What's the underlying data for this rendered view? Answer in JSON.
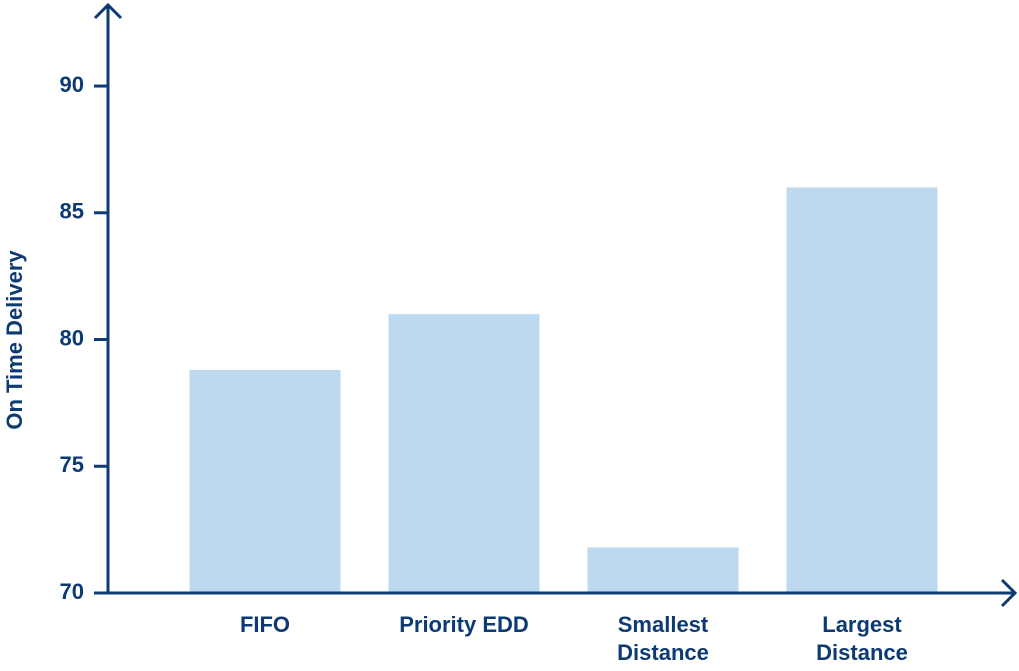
{
  "chart_data": {
    "type": "bar",
    "y_label": "On Time Delivery",
    "categories": [
      "FIFO",
      "Priority EDD",
      "Smallest Distance",
      "Largest Distance"
    ],
    "values": [
      78.8,
      81.0,
      71.8,
      86.0
    ],
    "color": "#bcd9f0",
    "axis_color": "#0d3a73",
    "ylim": [
      70,
      93
    ],
    "yticks": [
      70,
      75,
      80,
      85,
      90
    ],
    "grid": false
  }
}
